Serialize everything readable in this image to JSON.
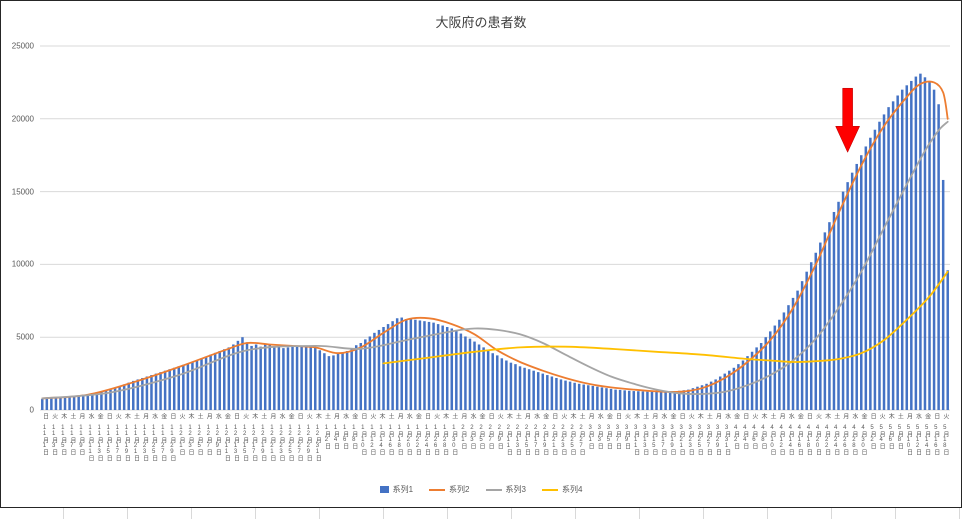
{
  "chart_data": {
    "type": "bar",
    "subtype": "combo-bar-with-lines",
    "title": "大阪府の患者数",
    "xlabel": "",
    "ylabel": "",
    "ylim": [
      0,
      25000
    ],
    "y_ticks": [
      0,
      5000,
      10000,
      15000,
      20000,
      25000
    ],
    "grid": "horizontal",
    "legend_position": "bottom",
    "x_unit": "daily (bars), axis labels every 2 days, months 11月〜5月",
    "x_tick_labels": [
      "日 11月1日",
      "火 11月3日",
      "木 11月5日",
      "土 11月7日",
      "月 11月9日",
      "水 11月11日",
      "金 11月13日",
      "日 11月15日",
      "火 11月17日",
      "木 11月19日",
      "土 11月21日",
      "月 11月23日",
      "水 11月25日",
      "金 11月27日",
      "日 11月29日",
      "火 12月1日",
      "木 12月3日",
      "土 12月5日",
      "月 12月7日",
      "水 12月9日",
      "金 12月11日",
      "日 12月13日",
      "火 12月15日",
      "木 12月17日",
      "土 12月19日",
      "月 12月21日",
      "水 12月23日",
      "金 12月25日",
      "日 12月27日",
      "火 12月29日",
      "木 12月31日",
      "土 1月2日",
      "月 1月4日",
      "水 1月6日",
      "金 1月8日",
      "日 1月10日",
      "火 1月12日",
      "木 1月14日",
      "土 1月16日",
      "月 1月18日",
      "水 1月20日",
      "金 1月22日",
      "日 1月24日",
      "火 1月26日",
      "木 1月28日",
      "土 1月30日",
      "月 2月1日",
      "水 2月3日",
      "金 2月5日",
      "日 2月7日",
      "火 2月9日",
      "木 2月11日",
      "土 2月13日",
      "月 2月15日",
      "水 2月17日",
      "金 2月19日",
      "日 2月21日",
      "火 2月23日",
      "木 2月25日",
      "土 2月27日",
      "月 3月1日",
      "水 3月3日",
      "金 3月5日",
      "日 3月7日",
      "火 3月9日",
      "木 3月11日",
      "土 3月13日",
      "月 3月15日",
      "水 3月17日",
      "金 3月19日",
      "日 3月21日",
      "火 3月23日",
      "木 3月25日",
      "土 3月27日",
      "月 3月29日",
      "水 3月31日",
      "金 4月2日",
      "日 4月4日",
      "火 4月6日",
      "木 4月8日",
      "土 4月10日",
      "月 4月12日",
      "水 4月14日",
      "金 4月16日",
      "日 4月18日",
      "火 4月20日",
      "木 4月22日",
      "土 4月24日",
      "月 4月26日",
      "水 4月28日",
      "金 4月30日",
      "日 5月2日",
      "火 5月4日",
      "木 5月6日",
      "土 5月8日",
      "月 5月10日",
      "水 5月12日",
      "金 5月14日",
      "日 5月16日",
      "火 5月18日"
    ],
    "series": [
      {
        "name": "系列1",
        "type": "bar",
        "color": "#4472C4",
        "values": [
          750,
          770,
          790,
          810,
          830,
          850,
          900,
          950,
          1000,
          1050,
          1100,
          1160,
          1220,
          1280,
          1340,
          1400,
          1520,
          1640,
          1760,
          1880,
          2000,
          2100,
          2200,
          2300,
          2400,
          2500,
          2600,
          2700,
          2800,
          2900,
          3000,
          3100,
          3200,
          3300,
          3425,
          3550,
          3675,
          3800,
          3925,
          4050,
          4175,
          4300,
          4500,
          4750,
          5000,
          4650,
          4400,
          4500,
          4350,
          4550,
          4500,
          4300,
          4450,
          4250,
          4300,
          4350,
          4380,
          4400,
          4380,
          4340,
          4300,
          4100,
          3900,
          3700,
          3750,
          3850,
          3900,
          4050,
          4250,
          4450,
          4600,
          4850,
          5050,
          5300,
          5500,
          5700,
          5900,
          6100,
          6300,
          6350,
          6250,
          6300,
          6200,
          6150,
          6100,
          6050,
          6000,
          5900,
          5800,
          5700,
          5600,
          5450,
          5250,
          5050,
          4900,
          4700,
          4500,
          4300,
          4100,
          3900,
          3750,
          3550,
          3400,
          3250,
          3150,
          3000,
          2900,
          2800,
          2700,
          2600,
          2500,
          2400,
          2300,
          2200,
          2100,
          2020,
          1950,
          1870,
          1800,
          1750,
          1700,
          1650,
          1600,
          1550,
          1500,
          1450,
          1400,
          1380,
          1350,
          1320,
          1300,
          1290,
          1270,
          1260,
          1250,
          1240,
          1230,
          1240,
          1250,
          1280,
          1320,
          1360,
          1400,
          1500,
          1600,
          1700,
          1800,
          1950,
          2100,
          2300,
          2500,
          2700,
          2900,
          3150,
          3400,
          3700,
          4000,
          4300,
          4600,
          5000,
          5400,
          5800,
          6200,
          6700,
          7200,
          7700,
          8200,
          8850,
          9500,
          10150,
          10800,
          11500,
          12200,
          12900,
          13600,
          14300,
          15000,
          15650,
          16300,
          16900,
          17500,
          18100,
          18700,
          19250,
          19800,
          20300,
          20800,
          21200,
          21600,
          22000,
          22300,
          22600,
          22900,
          23100,
          22850,
          22600,
          22000,
          21000,
          15800,
          9600
        ]
      },
      {
        "name": "系列2",
        "type": "line",
        "color": "#ED7D31",
        "points": [
          [
            0,
            800
          ],
          [
            10,
            1050
          ],
          [
            20,
            1900
          ],
          [
            30,
            2950
          ],
          [
            40,
            4100
          ],
          [
            45,
            4600
          ],
          [
            50,
            4500
          ],
          [
            55,
            4400
          ],
          [
            60,
            4300
          ],
          [
            65,
            3900
          ],
          [
            70,
            4300
          ],
          [
            75,
            5300
          ],
          [
            80,
            6200
          ],
          [
            85,
            6300
          ],
          [
            90,
            5900
          ],
          [
            95,
            5200
          ],
          [
            100,
            4100
          ],
          [
            105,
            3300
          ],
          [
            110,
            2700
          ],
          [
            115,
            2200
          ],
          [
            120,
            1800
          ],
          [
            125,
            1550
          ],
          [
            130,
            1400
          ],
          [
            135,
            1280
          ],
          [
            140,
            1250
          ],
          [
            145,
            1500
          ],
          [
            150,
            2200
          ],
          [
            155,
            3300
          ],
          [
            160,
            4800
          ],
          [
            165,
            7000
          ],
          [
            170,
            10000
          ],
          [
            175,
            13500
          ],
          [
            180,
            16800
          ],
          [
            185,
            19500
          ],
          [
            190,
            21500
          ],
          [
            193,
            22400
          ],
          [
            196,
            22500
          ],
          [
            198,
            21800
          ],
          [
            199,
            20000
          ]
        ]
      },
      {
        "name": "系列3",
        "type": "line",
        "color": "#A5A5A5",
        "points": [
          [
            0,
            800
          ],
          [
            15,
            1200
          ],
          [
            30,
            2400
          ],
          [
            45,
            4100
          ],
          [
            60,
            4400
          ],
          [
            70,
            4200
          ],
          [
            80,
            4800
          ],
          [
            90,
            5400
          ],
          [
            95,
            5600
          ],
          [
            100,
            5500
          ],
          [
            105,
            5200
          ],
          [
            110,
            4600
          ],
          [
            115,
            3800
          ],
          [
            120,
            3000
          ],
          [
            125,
            2300
          ],
          [
            130,
            1800
          ],
          [
            135,
            1400
          ],
          [
            140,
            1150
          ],
          [
            145,
            1100
          ],
          [
            150,
            1250
          ],
          [
            155,
            1700
          ],
          [
            160,
            2400
          ],
          [
            165,
            3400
          ],
          [
            170,
            4900
          ],
          [
            175,
            7000
          ],
          [
            180,
            9500
          ],
          [
            185,
            12500
          ],
          [
            190,
            15500
          ],
          [
            194,
            17800
          ],
          [
            197,
            19200
          ],
          [
            199,
            19800
          ]
        ]
      },
      {
        "name": "系列4",
        "type": "line",
        "color": "#FFC000",
        "points": [
          [
            75,
            3200
          ],
          [
            85,
            3600
          ],
          [
            95,
            4000
          ],
          [
            105,
            4300
          ],
          [
            115,
            4350
          ],
          [
            125,
            4200
          ],
          [
            135,
            4000
          ],
          [
            145,
            3800
          ],
          [
            155,
            3500
          ],
          [
            160,
            3400
          ],
          [
            165,
            3300
          ],
          [
            170,
            3350
          ],
          [
            175,
            3500
          ],
          [
            180,
            3900
          ],
          [
            185,
            4800
          ],
          [
            190,
            6200
          ],
          [
            195,
            7800
          ],
          [
            199,
            9500
          ]
        ]
      }
    ],
    "annotations": [
      {
        "type": "arrow-down",
        "color": "#FF0000",
        "x_index": 177,
        "y_from": 22100,
        "y_to": 17700
      }
    ],
    "text_color": "#595959",
    "gridline_color": "#D9D9D9"
  }
}
